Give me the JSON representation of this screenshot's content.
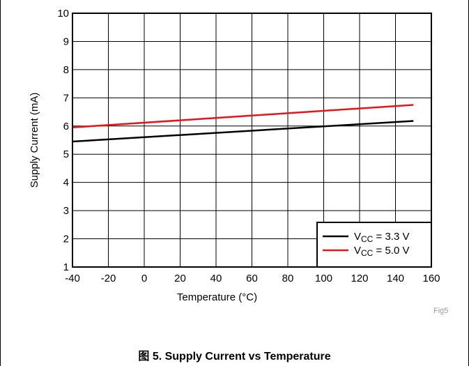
{
  "chart_data": {
    "type": "line",
    "xlabel": "Temperature (°C)",
    "ylabel": "Supply Current (mA)",
    "xlim": [
      -40,
      160
    ],
    "ylim": [
      1,
      10
    ],
    "xticks": [
      -40,
      -20,
      0,
      20,
      40,
      60,
      80,
      100,
      120,
      140,
      160
    ],
    "yticks": [
      1,
      2,
      3,
      4,
      5,
      6,
      7,
      8,
      9,
      10
    ],
    "grid": true,
    "legend_position": "bottom-right",
    "series": [
      {
        "name_main": "V",
        "name_sub": "CC",
        "name_rest": " = 3.3 V",
        "color": "#000000",
        "x": [
          -40,
          150
        ],
        "y": [
          5.45,
          6.18
        ]
      },
      {
        "name_main": "V",
        "name_sub": "CC",
        "name_rest": " = 5.0 V",
        "color": "#e8141c",
        "x": [
          -40,
          150
        ],
        "y": [
          5.95,
          6.75
        ]
      }
    ],
    "annotation": "Fig5"
  },
  "caption": "图 5. Supply Current vs Temperature"
}
